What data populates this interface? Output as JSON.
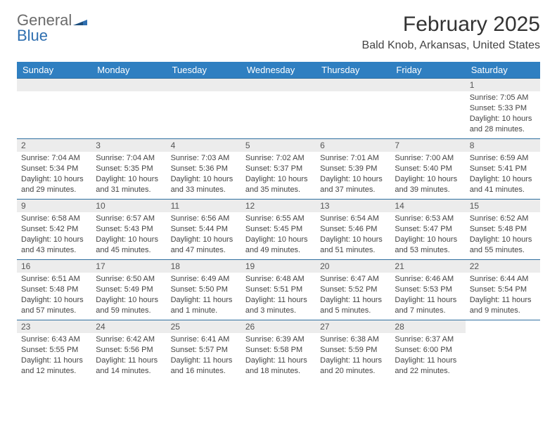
{
  "logo": {
    "line1": "General",
    "line2": "Blue"
  },
  "title": "February 2025",
  "location": "Bald Knob, Arkansas, United States",
  "dayHeaders": [
    "Sunday",
    "Monday",
    "Tuesday",
    "Wednesday",
    "Thursday",
    "Friday",
    "Saturday"
  ],
  "colors": {
    "headerBg": "#2f7fc1",
    "headerText": "#ffffff",
    "dayNumBg": "#ececec",
    "rowBorder": "#2f6fa0",
    "logoAccent": "#2f6fb0"
  },
  "weeks": [
    [
      {
        "empty": true
      },
      {
        "empty": true
      },
      {
        "empty": true
      },
      {
        "empty": true
      },
      {
        "empty": true
      },
      {
        "empty": true
      },
      {
        "day": "1",
        "sunrise": "Sunrise: 7:05 AM",
        "sunset": "Sunset: 5:33 PM",
        "daylight": "Daylight: 10 hours and 28 minutes."
      }
    ],
    [
      {
        "day": "2",
        "sunrise": "Sunrise: 7:04 AM",
        "sunset": "Sunset: 5:34 PM",
        "daylight": "Daylight: 10 hours and 29 minutes."
      },
      {
        "day": "3",
        "sunrise": "Sunrise: 7:04 AM",
        "sunset": "Sunset: 5:35 PM",
        "daylight": "Daylight: 10 hours and 31 minutes."
      },
      {
        "day": "4",
        "sunrise": "Sunrise: 7:03 AM",
        "sunset": "Sunset: 5:36 PM",
        "daylight": "Daylight: 10 hours and 33 minutes."
      },
      {
        "day": "5",
        "sunrise": "Sunrise: 7:02 AM",
        "sunset": "Sunset: 5:37 PM",
        "daylight": "Daylight: 10 hours and 35 minutes."
      },
      {
        "day": "6",
        "sunrise": "Sunrise: 7:01 AM",
        "sunset": "Sunset: 5:39 PM",
        "daylight": "Daylight: 10 hours and 37 minutes."
      },
      {
        "day": "7",
        "sunrise": "Sunrise: 7:00 AM",
        "sunset": "Sunset: 5:40 PM",
        "daylight": "Daylight: 10 hours and 39 minutes."
      },
      {
        "day": "8",
        "sunrise": "Sunrise: 6:59 AM",
        "sunset": "Sunset: 5:41 PM",
        "daylight": "Daylight: 10 hours and 41 minutes."
      }
    ],
    [
      {
        "day": "9",
        "sunrise": "Sunrise: 6:58 AM",
        "sunset": "Sunset: 5:42 PM",
        "daylight": "Daylight: 10 hours and 43 minutes."
      },
      {
        "day": "10",
        "sunrise": "Sunrise: 6:57 AM",
        "sunset": "Sunset: 5:43 PM",
        "daylight": "Daylight: 10 hours and 45 minutes."
      },
      {
        "day": "11",
        "sunrise": "Sunrise: 6:56 AM",
        "sunset": "Sunset: 5:44 PM",
        "daylight": "Daylight: 10 hours and 47 minutes."
      },
      {
        "day": "12",
        "sunrise": "Sunrise: 6:55 AM",
        "sunset": "Sunset: 5:45 PM",
        "daylight": "Daylight: 10 hours and 49 minutes."
      },
      {
        "day": "13",
        "sunrise": "Sunrise: 6:54 AM",
        "sunset": "Sunset: 5:46 PM",
        "daylight": "Daylight: 10 hours and 51 minutes."
      },
      {
        "day": "14",
        "sunrise": "Sunrise: 6:53 AM",
        "sunset": "Sunset: 5:47 PM",
        "daylight": "Daylight: 10 hours and 53 minutes."
      },
      {
        "day": "15",
        "sunrise": "Sunrise: 6:52 AM",
        "sunset": "Sunset: 5:48 PM",
        "daylight": "Daylight: 10 hours and 55 minutes."
      }
    ],
    [
      {
        "day": "16",
        "sunrise": "Sunrise: 6:51 AM",
        "sunset": "Sunset: 5:48 PM",
        "daylight": "Daylight: 10 hours and 57 minutes."
      },
      {
        "day": "17",
        "sunrise": "Sunrise: 6:50 AM",
        "sunset": "Sunset: 5:49 PM",
        "daylight": "Daylight: 10 hours and 59 minutes."
      },
      {
        "day": "18",
        "sunrise": "Sunrise: 6:49 AM",
        "sunset": "Sunset: 5:50 PM",
        "daylight": "Daylight: 11 hours and 1 minute."
      },
      {
        "day": "19",
        "sunrise": "Sunrise: 6:48 AM",
        "sunset": "Sunset: 5:51 PM",
        "daylight": "Daylight: 11 hours and 3 minutes."
      },
      {
        "day": "20",
        "sunrise": "Sunrise: 6:47 AM",
        "sunset": "Sunset: 5:52 PM",
        "daylight": "Daylight: 11 hours and 5 minutes."
      },
      {
        "day": "21",
        "sunrise": "Sunrise: 6:46 AM",
        "sunset": "Sunset: 5:53 PM",
        "daylight": "Daylight: 11 hours and 7 minutes."
      },
      {
        "day": "22",
        "sunrise": "Sunrise: 6:44 AM",
        "sunset": "Sunset: 5:54 PM",
        "daylight": "Daylight: 11 hours and 9 minutes."
      }
    ],
    [
      {
        "day": "23",
        "sunrise": "Sunrise: 6:43 AM",
        "sunset": "Sunset: 5:55 PM",
        "daylight": "Daylight: 11 hours and 12 minutes."
      },
      {
        "day": "24",
        "sunrise": "Sunrise: 6:42 AM",
        "sunset": "Sunset: 5:56 PM",
        "daylight": "Daylight: 11 hours and 14 minutes."
      },
      {
        "day": "25",
        "sunrise": "Sunrise: 6:41 AM",
        "sunset": "Sunset: 5:57 PM",
        "daylight": "Daylight: 11 hours and 16 minutes."
      },
      {
        "day": "26",
        "sunrise": "Sunrise: 6:39 AM",
        "sunset": "Sunset: 5:58 PM",
        "daylight": "Daylight: 11 hours and 18 minutes."
      },
      {
        "day": "27",
        "sunrise": "Sunrise: 6:38 AM",
        "sunset": "Sunset: 5:59 PM",
        "daylight": "Daylight: 11 hours and 20 minutes."
      },
      {
        "day": "28",
        "sunrise": "Sunrise: 6:37 AM",
        "sunset": "Sunset: 6:00 PM",
        "daylight": "Daylight: 11 hours and 22 minutes."
      },
      {
        "empty": true
      }
    ]
  ]
}
